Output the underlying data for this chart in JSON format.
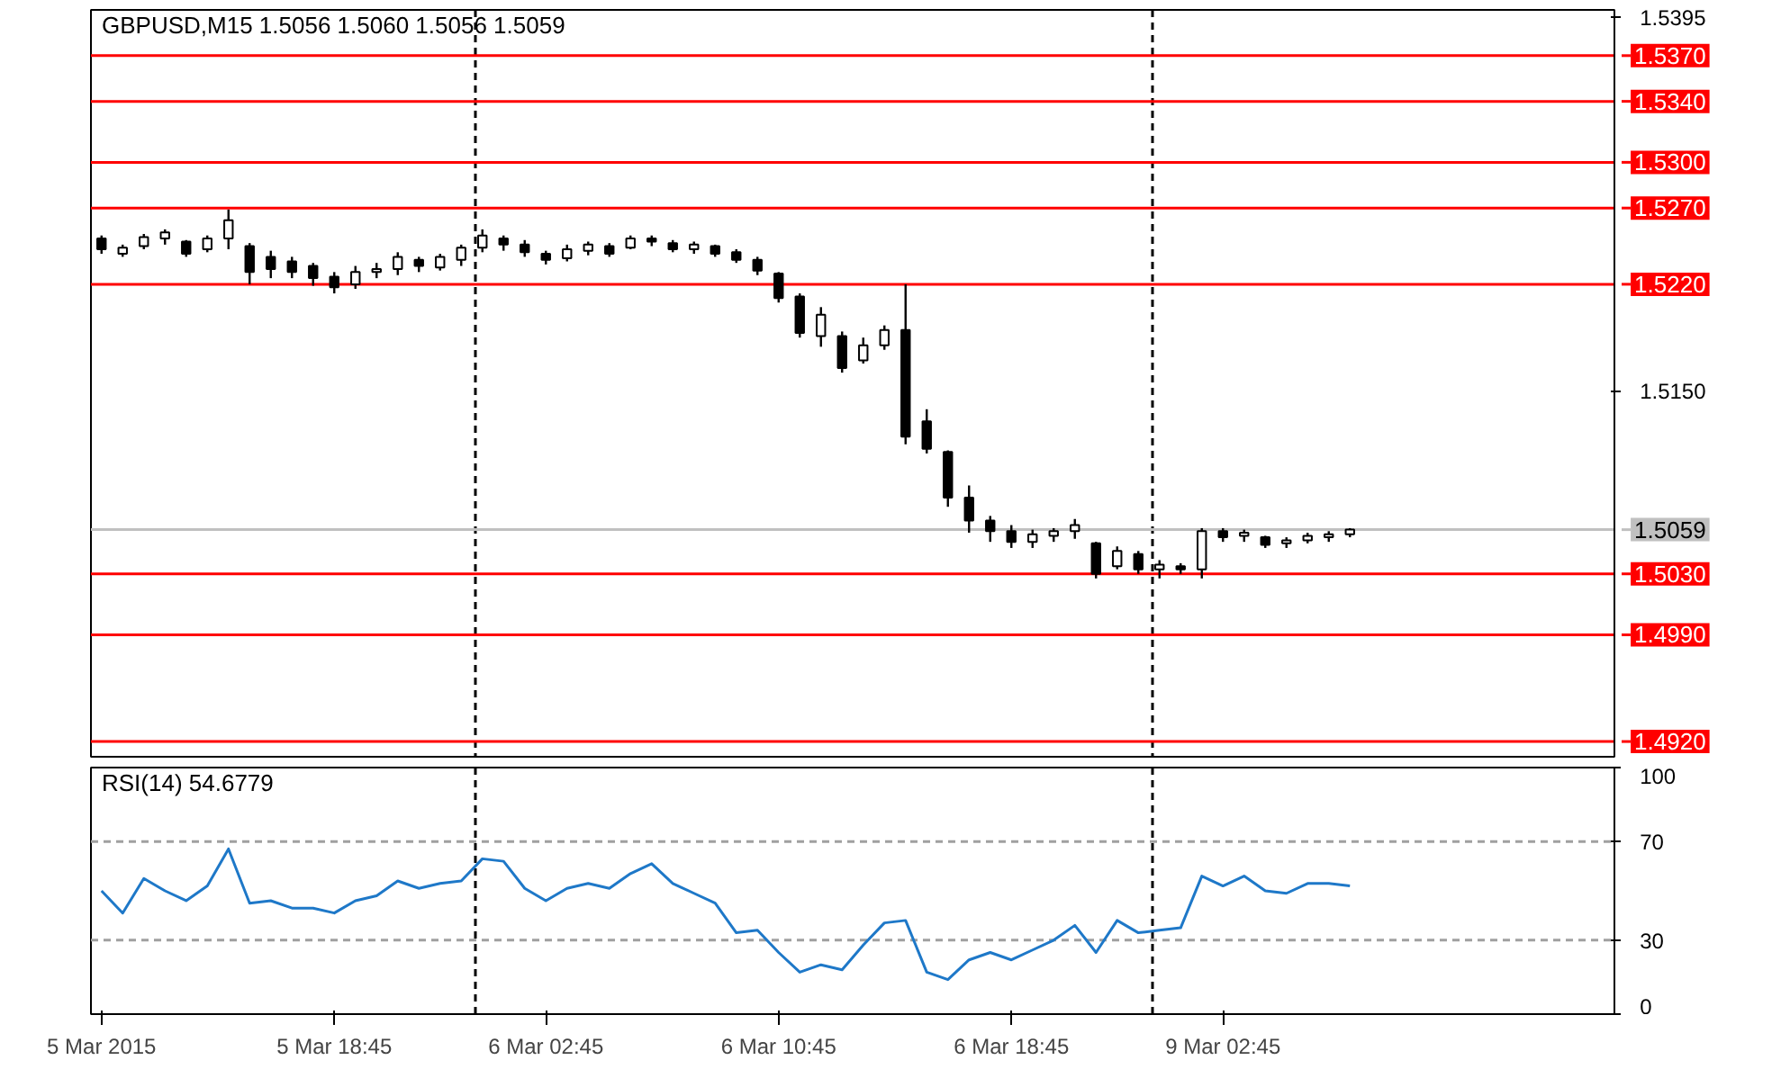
{
  "chart_data": [
    {
      "type": "candlestick",
      "title": "GBPUSD,M15  1.5056 1.5060 1.5056 1.5059",
      "color": "#000000",
      "tick_labels": "y",
      "ylim": [
        1.491,
        1.54
      ],
      "yticks": [
        {
          "value": 1.5395,
          "label": "1.5395"
        },
        {
          "value": 1.515,
          "label": "1.5150"
        }
      ],
      "categories": [
        null,
        null,
        null,
        null,
        null,
        null,
        null,
        null,
        null,
        null,
        null,
        null,
        null,
        null,
        null,
        null,
        null,
        null,
        null,
        null,
        null,
        null,
        null,
        null,
        null,
        null,
        null,
        null,
        null,
        null,
        null,
        null,
        null,
        null,
        null,
        null,
        null,
        null,
        null,
        null,
        null,
        null,
        null,
        null,
        null,
        null,
        null,
        null,
        null,
        null,
        null,
        null,
        null,
        null,
        null,
        null,
        null,
        null,
        null,
        null,
        null,
        null,
        null,
        null,
        null,
        null,
        null,
        null,
        null,
        null,
        null,
        null
      ],
      "ohlc": [
        [
          1.525,
          1.5252,
          1.524,
          1.5243
        ],
        [
          1.524,
          1.5246,
          1.5238,
          1.5244
        ],
        [
          1.5245,
          1.5253,
          1.5243,
          1.5251
        ],
        [
          1.525,
          1.5256,
          1.5246,
          1.5254
        ],
        [
          1.5248,
          1.5249,
          1.5238,
          1.524
        ],
        [
          1.5243,
          1.5252,
          1.5241,
          1.525
        ],
        [
          1.525,
          1.5269,
          1.5243,
          1.5262
        ],
        [
          1.5245,
          1.5247,
          1.522,
          1.5228
        ],
        [
          1.5238,
          1.5242,
          1.5224,
          1.523
        ],
        [
          1.5235,
          1.5238,
          1.5224,
          1.5228
        ],
        [
          1.5232,
          1.5234,
          1.5219,
          1.5224
        ],
        [
          1.5225,
          1.5228,
          1.5214,
          1.5218
        ],
        [
          1.522,
          1.5232,
          1.5217,
          1.5228
        ],
        [
          1.5228,
          1.5234,
          1.5224,
          1.523
        ],
        [
          1.523,
          1.5241,
          1.5226,
          1.5238
        ],
        [
          1.5236,
          1.5238,
          1.5228,
          1.5232
        ],
        [
          1.5231,
          1.524,
          1.5229,
          1.5238
        ],
        [
          1.5236,
          1.5246,
          1.5232,
          1.5244
        ],
        [
          1.5244,
          1.5256,
          1.5241,
          1.5252
        ],
        [
          1.525,
          1.5252,
          1.5242,
          1.5246
        ],
        [
          1.5246,
          1.5249,
          1.5238,
          1.5241
        ],
        [
          1.524,
          1.5242,
          1.5233,
          1.5236
        ],
        [
          1.5237,
          1.5246,
          1.5235,
          1.5243
        ],
        [
          1.5242,
          1.5248,
          1.5239,
          1.5246
        ],
        [
          1.5245,
          1.5247,
          1.5238,
          1.524
        ],
        [
          1.5244,
          1.5252,
          1.5243,
          1.525
        ],
        [
          1.525,
          1.5252,
          1.5245,
          1.5248
        ],
        [
          1.5247,
          1.5249,
          1.5241,
          1.5243
        ],
        [
          1.5243,
          1.5248,
          1.524,
          1.5246
        ],
        [
          1.5245,
          1.5246,
          1.5238,
          1.524
        ],
        [
          1.5241,
          1.5243,
          1.5234,
          1.5236
        ],
        [
          1.5236,
          1.5238,
          1.5226,
          1.5229
        ],
        [
          1.5227,
          1.5228,
          1.5208,
          1.5211
        ],
        [
          1.5212,
          1.5214,
          1.5185,
          1.5188
        ],
        [
          1.5186,
          1.5205,
          1.5179,
          1.52
        ],
        [
          1.5186,
          1.5189,
          1.5162,
          1.5165
        ],
        [
          1.517,
          1.5185,
          1.5168,
          1.518
        ],
        [
          1.518,
          1.5193,
          1.5177,
          1.519
        ],
        [
          1.519,
          1.522,
          1.5115,
          1.512
        ],
        [
          1.513,
          1.5138,
          1.5109,
          1.5112
        ],
        [
          1.511,
          1.5111,
          1.5074,
          1.508
        ],
        [
          1.508,
          1.5088,
          1.5057,
          1.5065
        ],
        [
          1.5065,
          1.5068,
          1.5051,
          1.5058
        ],
        [
          1.5058,
          1.5062,
          1.5047,
          1.5051
        ],
        [
          1.5051,
          1.5059,
          1.5047,
          1.5056
        ],
        [
          1.5055,
          1.506,
          1.5051,
          1.5058
        ],
        [
          1.5058,
          1.5066,
          1.5053,
          1.5062
        ],
        [
          1.505,
          1.5051,
          1.5027,
          1.503
        ],
        [
          1.5035,
          1.5048,
          1.5033,
          1.5045
        ],
        [
          1.5043,
          1.5045,
          1.503,
          1.5033
        ],
        [
          1.5033,
          1.5039,
          1.5027,
          1.5036
        ],
        [
          1.5035,
          1.5037,
          1.503,
          1.5033
        ],
        [
          1.5033,
          1.506,
          1.5027,
          1.5058
        ],
        [
          1.5058,
          1.506,
          1.5051,
          1.5054
        ],
        [
          1.5055,
          1.5059,
          1.5051,
          1.5057
        ],
        [
          1.5054,
          1.5055,
          1.5047,
          1.5049
        ],
        [
          1.505,
          1.5054,
          1.5047,
          1.5052
        ],
        [
          1.5052,
          1.5057,
          1.505,
          1.5055
        ],
        [
          1.5054,
          1.5058,
          1.5051,
          1.5056
        ],
        [
          1.5056,
          1.506,
          1.5054,
          1.5059
        ],
        null,
        null,
        null,
        null,
        null,
        null,
        null,
        null,
        null,
        null,
        null,
        null
      ],
      "ref_lines": [
        {
          "axis": "y",
          "value": 1.537,
          "label": "1.5370",
          "color": "#ff0000"
        },
        {
          "axis": "y",
          "value": 1.534,
          "label": "1.5340",
          "color": "#ff0000"
        },
        {
          "axis": "y",
          "value": 1.53,
          "label": "1.5300",
          "color": "#ff0000"
        },
        {
          "axis": "y",
          "value": 1.527,
          "label": "1.5270",
          "color": "#ff0000"
        },
        {
          "axis": "y",
          "value": 1.522,
          "label": "1.5220",
          "color": "#ff0000"
        },
        {
          "axis": "y",
          "value": 1.5059,
          "label": "1.5059",
          "color": "#c0c0c0"
        },
        {
          "axis": "y",
          "value": 1.503,
          "label": "1.5030",
          "color": "#ff0000"
        },
        {
          "axis": "y",
          "value": 1.499,
          "label": "1.4990",
          "color": "#ff0000"
        },
        {
          "axis": "y",
          "value": 1.492,
          "label": "1.4920",
          "color": "#ff0000"
        }
      ]
    },
    {
      "type": "line",
      "title": "RSI(14) 54.6779",
      "ylim": [
        0,
        100
      ],
      "yticks": [
        0,
        30,
        70,
        100
      ],
      "categories": [
        "5 Mar 2015",
        null,
        null,
        null,
        null,
        null,
        null,
        null,
        null,
        null,
        null,
        "5 Mar 18:45",
        null,
        null,
        null,
        null,
        null,
        null,
        null,
        null,
        null,
        "6 Mar 02:45",
        null,
        null,
        null,
        null,
        null,
        null,
        null,
        null,
        null,
        null,
        "6 Mar 10:45",
        null,
        null,
        null,
        null,
        null,
        null,
        null,
        null,
        null,
        null,
        "6 Mar 18:45",
        null,
        null,
        null,
        null,
        null,
        null,
        null,
        null,
        null,
        "9 Mar 02:45",
        null,
        null,
        null,
        null,
        null,
        null,
        null,
        null,
        null,
        null,
        null,
        null,
        null,
        null,
        null,
        null,
        null,
        null
      ],
      "series": [
        {
          "color": "#1e78c8",
          "values": [
            50,
            41,
            55,
            50,
            46,
            52,
            67,
            45,
            46,
            43,
            43,
            41,
            46,
            48,
            54,
            51,
            53,
            54,
            63,
            62,
            51,
            46,
            51,
            53,
            51,
            57,
            61,
            53,
            49,
            45,
            33,
            34,
            25,
            17,
            20,
            18,
            28,
            37,
            38,
            17,
            14,
            22,
            25,
            22,
            26,
            30,
            36,
            25,
            38,
            33,
            34,
            35,
            56,
            52,
            56,
            50,
            49,
            53,
            53,
            52,
            null,
            null,
            null,
            null,
            null,
            null,
            null,
            null,
            null,
            null,
            null,
            null
          ]
        }
      ],
      "ref_lines": [
        {
          "axis": "y",
          "value": 70,
          "color": "#a0a0a0",
          "line_style": "dashed"
        },
        {
          "axis": "y",
          "value": 30,
          "color": "#a0a0a0",
          "line_style": "dashed"
        }
      ]
    }
  ]
}
